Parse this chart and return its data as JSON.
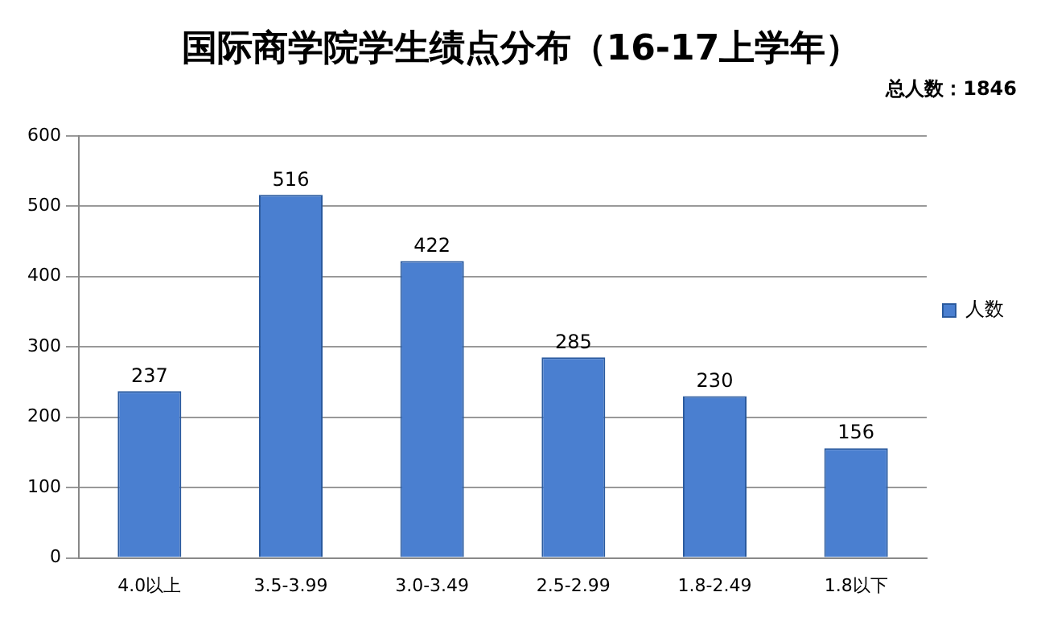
{
  "chart_data": {
    "type": "bar",
    "title": "国际商学院学生绩点分布（16-17上学年）",
    "annotations": [
      "总人数：1846"
    ],
    "categories": [
      "4.0以上",
      "3.5-3.99",
      "3.0-3.49",
      "2.5-2.99",
      "1.8-2.49",
      "1.8以下"
    ],
    "series": [
      {
        "name": "人数",
        "color": "#4a7fd0",
        "values": [
          237,
          516,
          422,
          285,
          230,
          156
        ]
      }
    ],
    "ylim": [
      0,
      600
    ],
    "yticks": [
      0,
      100,
      200,
      300,
      400,
      500,
      600
    ],
    "grid": "y",
    "legend": "right",
    "data_labels": true
  }
}
